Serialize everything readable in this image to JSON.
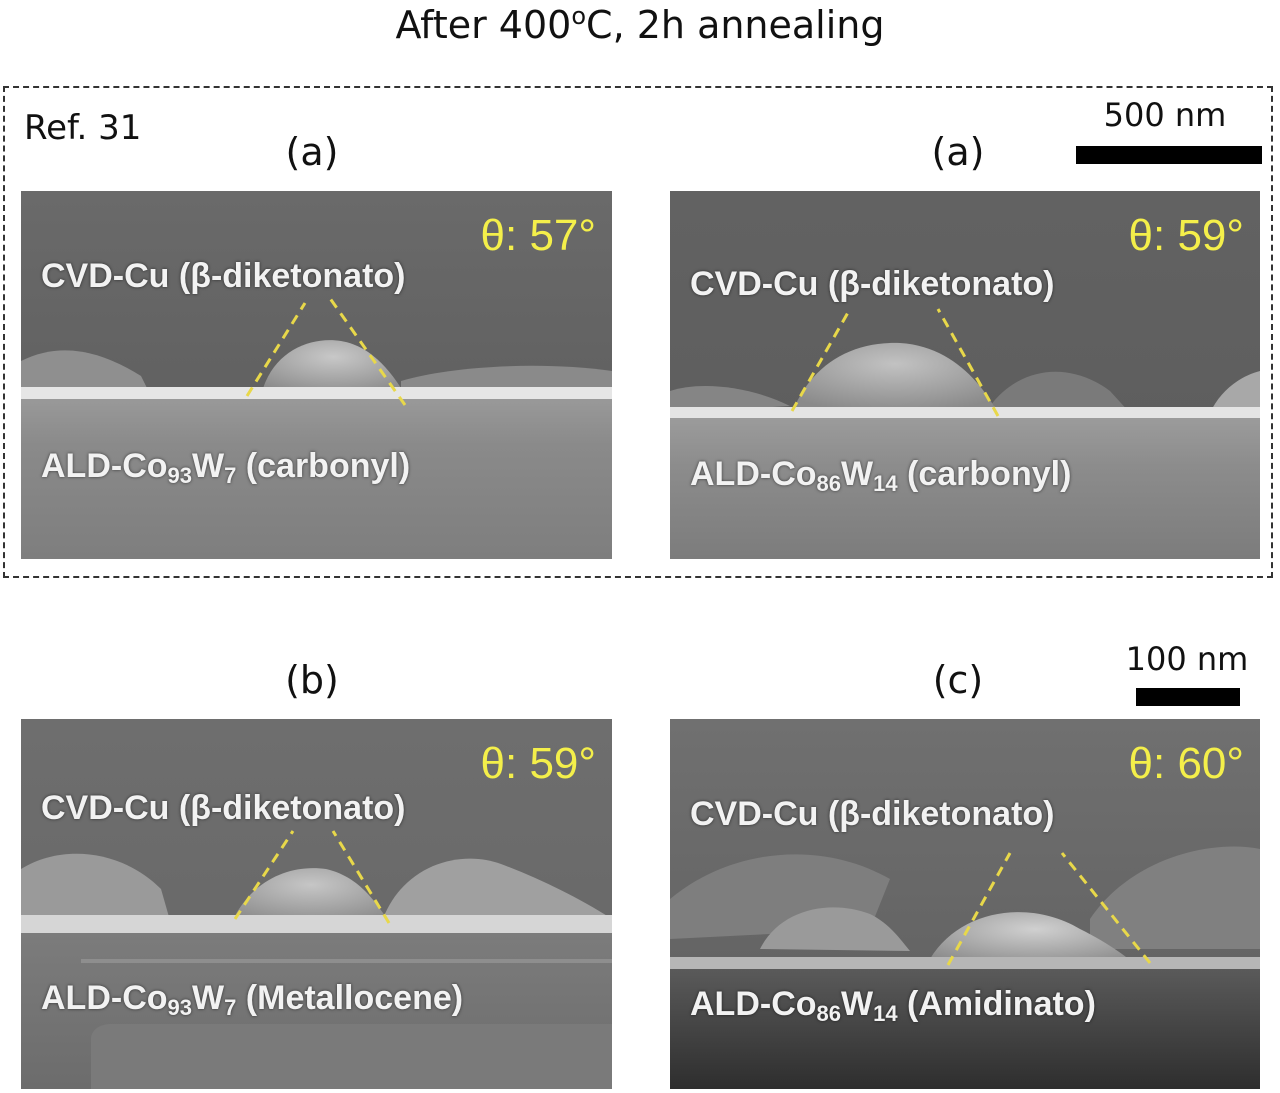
{
  "title": {
    "prefix": "After 400",
    "degree": "o",
    "suffix": "C, 2h annealing"
  },
  "reference_box": {
    "ref_label": "Ref. 31",
    "scale_bar_label": "500 nm"
  },
  "lower_scale_bar_label": "100 nm",
  "panels": [
    {
      "panel_label": "(a)",
      "angle": "θ: 57°",
      "top_layer": "CVD-Cu (β-diketonato)",
      "sub_prefix": "ALD-Co",
      "sub_co": "93",
      "sub_w": "W",
      "sub_w_num": "7",
      "sub_precursor": " (carbonyl)"
    },
    {
      "panel_label": "(a)",
      "angle": "θ: 59°",
      "top_layer": "CVD-Cu (β-diketonato)",
      "sub_prefix": "ALD-Co",
      "sub_co": "86",
      "sub_w": "W",
      "sub_w_num": "14",
      "sub_precursor": " (carbonyl)"
    },
    {
      "panel_label": "(b)",
      "angle": "θ: 59°",
      "top_layer": "CVD-Cu (β-diketonato)",
      "sub_prefix": "ALD-Co",
      "sub_co": "93",
      "sub_w": "W",
      "sub_w_num": "7",
      "sub_precursor": " (Metallocene)"
    },
    {
      "panel_label": "(c)",
      "angle": "θ: 60°",
      "top_layer": "CVD-Cu (β-diketonato)",
      "sub_prefix": "ALD-Co",
      "sub_co": "86",
      "sub_w": "W",
      "sub_w_num": "14",
      "sub_precursor": " (Amidinato)"
    }
  ],
  "colors": {
    "angle_text": "#f4ef4a",
    "guide_lines": "#e8d84a"
  }
}
